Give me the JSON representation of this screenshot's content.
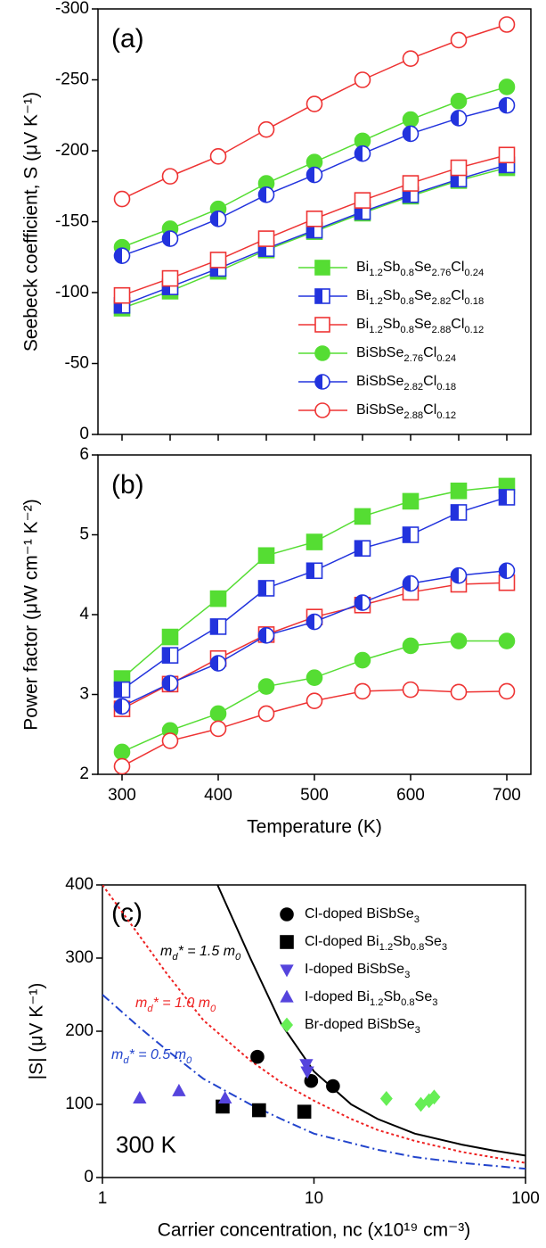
{
  "chart_data": [
    {
      "type": "line",
      "label": "(a)",
      "ylabel": "Seebeck coefficient, S (μV K⁻¹)",
      "xlim": [
        275,
        725
      ],
      "xticks": [
        300,
        350,
        400,
        450,
        500,
        550,
        600,
        650,
        700
      ],
      "show_xtick_labels": false,
      "ylim": [
        0,
        -300
      ],
      "yticks": [
        -300,
        -250,
        -200,
        -150,
        -100,
        -50,
        0
      ],
      "legend": "lower right",
      "x": [
        300,
        350,
        400,
        450,
        500,
        550,
        600,
        650,
        700
      ],
      "series": [
        {
          "name": "Bi1.2Sb0.8Se2.76Cl0.24",
          "color": "#55dd33",
          "marker": "square",
          "fill": "full",
          "values": [
            -89,
            -101,
            -115,
            -130,
            -143,
            -156,
            -168,
            -179,
            -188
          ]
        },
        {
          "name": "Bi1.2Sb0.8Se2.82Cl0.18",
          "color": "#2233dd",
          "marker": "square",
          "fill": "half",
          "values": [
            -91,
            -104,
            -117,
            -131,
            -144,
            -157,
            -169,
            -180,
            -190
          ]
        },
        {
          "name": "Bi1.2Sb0.8Se2.88Cl0.12",
          "color": "#ee3333",
          "marker": "square",
          "fill": "none",
          "values": [
            -98,
            -110,
            -123,
            -138,
            -152,
            -165,
            -177,
            -188,
            -197
          ]
        },
        {
          "name": "BiSbSe2.76Cl0.24",
          "color": "#55dd33",
          "marker": "circle",
          "fill": "full",
          "values": [
            -132,
            -145,
            -159,
            -177,
            -192,
            -207,
            -222,
            -235,
            -245
          ]
        },
        {
          "name": "BiSbSe2.82Cl0.18",
          "color": "#2233dd",
          "marker": "circle",
          "fill": "half",
          "values": [
            -126,
            -138,
            -152,
            -169,
            -183,
            -198,
            -212,
            -223,
            -232
          ]
        },
        {
          "name": "BiSbSe2.88Cl0.12",
          "color": "#ee3333",
          "marker": "circle",
          "fill": "none",
          "values": [
            -166,
            -182,
            -196,
            -215,
            -233,
            -250,
            -265,
            -278,
            -289
          ]
        }
      ]
    },
    {
      "type": "line",
      "label": "(b)",
      "xlabel": "Temperature (K)",
      "ylabel": "Power factor (μW cm⁻¹ K⁻²)",
      "xlim": [
        275,
        725
      ],
      "xticks": [
        300,
        400,
        500,
        600,
        700
      ],
      "show_xtick_labels": true,
      "ylim": [
        2,
        6
      ],
      "yticks": [
        2,
        3,
        4,
        5,
        6
      ],
      "x": [
        300,
        350,
        400,
        450,
        500,
        550,
        600,
        650,
        700
      ],
      "series": [
        {
          "color": "#55dd33",
          "marker": "square",
          "fill": "full",
          "values": [
            3.2,
            3.72,
            4.2,
            4.74,
            4.91,
            5.23,
            5.42,
            5.55,
            5.61
          ]
        },
        {
          "color": "#2233dd",
          "marker": "square",
          "fill": "half",
          "values": [
            3.06,
            3.49,
            3.85,
            4.33,
            4.55,
            4.83,
            5.0,
            5.28,
            5.47
          ]
        },
        {
          "color": "#ee3333",
          "marker": "square",
          "fill": "none",
          "values": [
            2.82,
            3.13,
            3.45,
            3.75,
            3.97,
            4.12,
            4.28,
            4.38,
            4.4
          ]
        },
        {
          "color": "#55dd33",
          "marker": "circle",
          "fill": "full",
          "values": [
            2.28,
            2.55,
            2.76,
            3.1,
            3.21,
            3.43,
            3.61,
            3.67,
            3.67
          ]
        },
        {
          "color": "#2233dd",
          "marker": "circle",
          "fill": "half",
          "values": [
            2.85,
            3.14,
            3.39,
            3.74,
            3.91,
            4.15,
            4.39,
            4.49,
            4.55
          ]
        },
        {
          "color": "#ee3333",
          "marker": "circle",
          "fill": "none",
          "values": [
            2.1,
            2.42,
            2.57,
            2.76,
            2.92,
            3.04,
            3.06,
            3.03,
            3.04
          ]
        }
      ]
    },
    {
      "type": "scatter",
      "label": "(c)",
      "note": "300 K",
      "xlabel": "Carrier concentration, nc (x10¹⁹ cm⁻³)",
      "ylabel": "|S| (μV K⁻¹)",
      "xscale": "log",
      "xlim": [
        1,
        100
      ],
      "xticks": [
        1,
        10,
        100
      ],
      "ylim": [
        0,
        400
      ],
      "yticks": [
        0,
        100,
        200,
        300,
        400
      ],
      "legend": "upper right",
      "curves": [
        {
          "color": "#000000",
          "dash": "solid",
          "x": [
            3.5,
            5,
            7,
            10,
            15,
            20,
            30,
            50,
            70,
            100
          ],
          "y": [
            400,
            300,
            210,
            145,
            100,
            80,
            60,
            45,
            37,
            30
          ]
        },
        {
          "color": "#ee2222",
          "dash": "dot",
          "x": [
            1,
            1.5,
            2,
            3,
            5,
            7,
            10,
            15,
            20,
            30,
            50,
            100
          ],
          "y": [
            400,
            330,
            280,
            215,
            160,
            130,
            105,
            80,
            65,
            50,
            35,
            20
          ]
        },
        {
          "color": "#2244cc",
          "dash": "dashdot",
          "x": [
            1,
            1.5,
            2,
            3,
            5,
            7,
            10,
            20,
            30,
            50,
            100
          ],
          "y": [
            250,
            205,
            175,
            135,
            100,
            80,
            60,
            38,
            28,
            20,
            12
          ]
        }
      ],
      "annotations": [
        {
          "text": "md* = 1.5 m0",
          "color": "#000000"
        },
        {
          "text": "md* = 1.0 m0",
          "color": "#ee2222"
        },
        {
          "text": "md* = 0.5 m0",
          "color": "#2244cc"
        }
      ],
      "series": [
        {
          "name": "Cl-doped BiSbSe3",
          "color": "#000000",
          "marker": "circle",
          "x": [
            5.4,
            9.7,
            12.3
          ],
          "y": [
            165,
            132,
            125
          ]
        },
        {
          "name": "Cl-doped Bi1.2Sb0.8Se3",
          "color": "#000000",
          "marker": "square",
          "x": [
            3.7,
            5.5,
            9
          ],
          "y": [
            97,
            92,
            90
          ]
        },
        {
          "name": "I-doped BiSbSe3",
          "color": "#5544dd",
          "marker": "triangle-down",
          "x": [
            9.2,
            9.3
          ],
          "y": [
            155,
            145
          ]
        },
        {
          "name": "I-doped Bi1.2Sb0.8Se3",
          "color": "#5544dd",
          "marker": "triangle-up",
          "x": [
            1.5,
            2.3,
            3.8
          ],
          "y": [
            108,
            118,
            108
          ]
        },
        {
          "name": "Br-doped BiSbSe3",
          "color": "#66ee55",
          "marker": "diamond",
          "x": [
            22,
            32,
            35,
            37
          ],
          "y": [
            108,
            100,
            105,
            110
          ]
        }
      ]
    }
  ]
}
